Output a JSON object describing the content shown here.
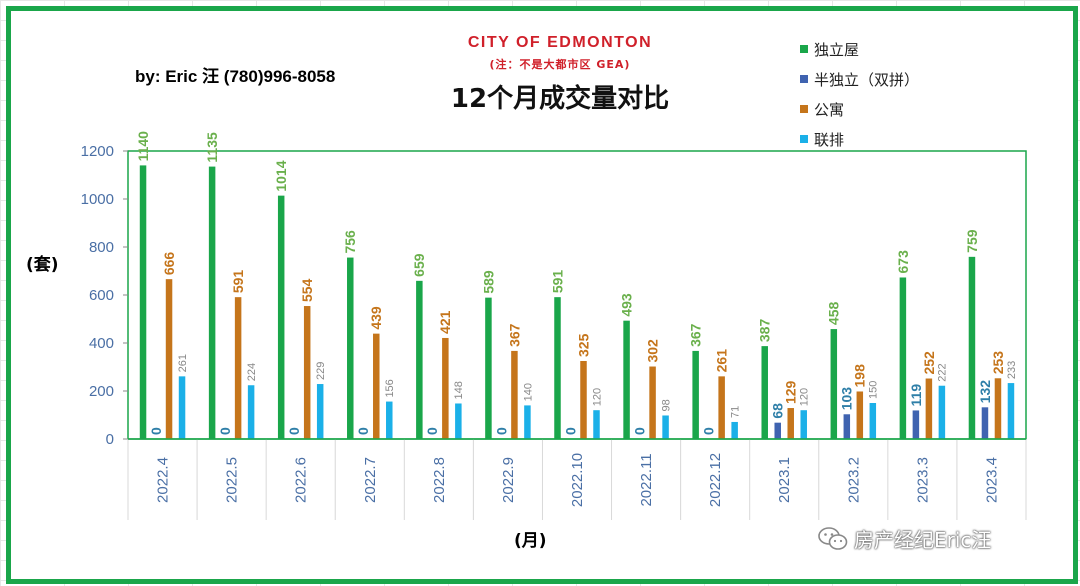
{
  "header": {
    "author": "by: Eric 汪  (780)996-8058",
    "city": "CITY OF EDMONTON",
    "note": "(注：不是大都市区 GEA)",
    "title": "12个月成交量对比"
  },
  "watermark": {
    "text": "房产经纪Eric汪",
    "icon": "wechat-icon"
  },
  "chart_data": {
    "type": "bar",
    "title": "12个月成交量对比",
    "xlabel": "(月)",
    "ylabel": "(套)",
    "ylim": [
      0,
      1200
    ],
    "yticks": [
      "0",
      "200",
      "400",
      "600",
      "800",
      "1000",
      "1200"
    ],
    "grid": false,
    "legend_position": "top-right",
    "categories": [
      "2022.4",
      "2022.5",
      "2022.6",
      "2022.7",
      "2022.8",
      "2022.9",
      "2022.10",
      "2022.11",
      "2022.12",
      "2023.1",
      "2023.2",
      "2023.3",
      "2023.4"
    ],
    "series": [
      {
        "name": "独立屋",
        "color": "#1aa64a",
        "label_color": "#6ab04c",
        "values": [
          1140,
          1135,
          1014,
          756,
          659,
          589,
          591,
          493,
          367,
          387,
          458,
          673,
          759
        ]
      },
      {
        "name": "半独立（双拼）",
        "color": "#3f63b0",
        "label_color": "#2f7fa8",
        "values": [
          0,
          0,
          0,
          0,
          0,
          0,
          0,
          0,
          0,
          68,
          103,
          119,
          132
        ]
      },
      {
        "name": "公寓",
        "color": "#c5751b",
        "label_color": "#c5751b",
        "values": [
          666,
          591,
          554,
          439,
          421,
          367,
          325,
          302,
          261,
          129,
          198,
          252,
          253
        ]
      },
      {
        "name": "联排",
        "color": "#1bb0e8",
        "label_color": "#888888",
        "values": [
          261,
          224,
          229,
          156,
          148,
          140,
          120,
          98,
          71,
          120,
          150,
          222,
          233
        ]
      }
    ]
  }
}
